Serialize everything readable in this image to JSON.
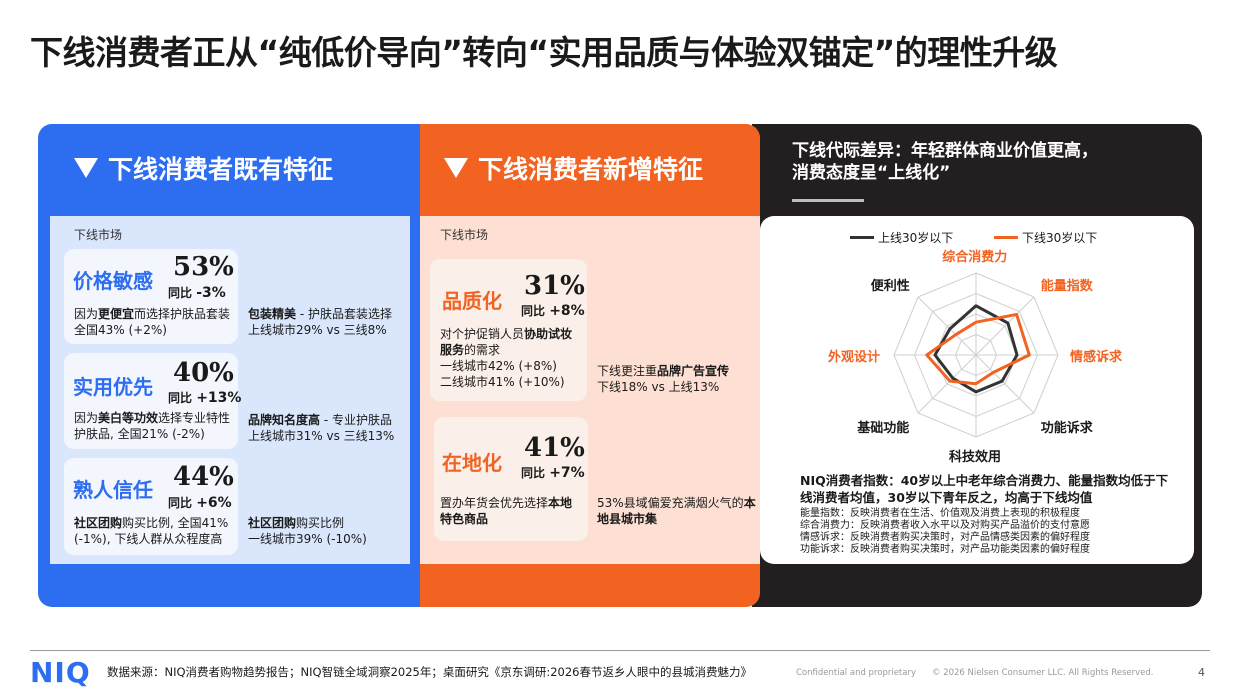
{
  "title": "下线消费者正从“纯低价导向”转向“实用品质与体验双锚定”的理性升级",
  "colors": {
    "blue": "#2d6ef0",
    "orange": "#f26322",
    "dark": "#231f20"
  },
  "left": {
    "header": "下线消费者既有特征",
    "market": "下线市场",
    "cards": [
      {
        "title": "价格敏感",
        "pct": "53%",
        "yoy_label": "同比",
        "yoy": "-3%",
        "desc_pre": "因为",
        "desc_bold": "更便宜",
        "desc_post": "而选择护肤品套装 全国43% (+2%)",
        "side_bold": "包装精美",
        "side_post": " - 护肤品套装选择",
        "side_line2": "上线城市29% vs 三线8%"
      },
      {
        "title": "实用优先",
        "pct": "40%",
        "yoy_label": "同比",
        "yoy": "+13%",
        "desc_pre": "因为",
        "desc_bold": "美白等功效",
        "desc_post": "选择专业特性护肤品, 全国21% (-2%)",
        "side_bold": "品牌知名度高",
        "side_post": " - 专业护肤品",
        "side_line2": "上线城市31% vs 三线13%"
      },
      {
        "title": "熟人信任",
        "pct": "44%",
        "yoy_label": "同比",
        "yoy": "+6%",
        "desc_pre": "",
        "desc_bold": "社区团购",
        "desc_post": "购买比例, 全国41% (-1%), 下线人群从众程度高",
        "side_bold": "社区团购",
        "side_post": "购买比例",
        "side_line2": "一线城市39% (-10%)"
      }
    ]
  },
  "middle": {
    "header": "下线消费者新增特征",
    "market": "下线市场",
    "cards": [
      {
        "title": "品质化",
        "pct": "31%",
        "yoy_label": "同比",
        "yoy": "+8%",
        "desc_pre": "对个护促销人员",
        "desc_bold": "协助试妆服务",
        "desc_post": "的需求",
        "line_a": "一线城市42% (+8%)",
        "line_b": "二线城市41% (+10%)",
        "side_pre": "下线更注重",
        "side_bold": "品牌广告宣传",
        "side_line2": "下线18% vs 上线13%"
      },
      {
        "title": "在地化",
        "pct": "41%",
        "yoy_label": "同比",
        "yoy": "+7%",
        "desc_pre": "置办年货会优先选择",
        "desc_bold": "本地特色商品",
        "desc_post": "",
        "side_pre": "53%县域偏爱充满烟火气的",
        "side_bold": "本地县城市集",
        "side_line2": ""
      }
    ]
  },
  "right": {
    "header_line1": "下线代际差异：年轻群体商业价值更高，",
    "header_line2": "消费态度呈“上线化”",
    "legend": [
      {
        "label": "上线30岁以下",
        "color": "#333333"
      },
      {
        "label": "下线30岁以下",
        "color": "#f26322"
      }
    ],
    "chart_data": {
      "type": "radar",
      "axes": [
        "综合消费力",
        "能量指数",
        "情感诉求",
        "功能诉求",
        "科技效用",
        "基础功能",
        "外观设计",
        "便利性"
      ],
      "series": [
        {
          "name": "上线30岁以下",
          "values": [
            0.6,
            0.55,
            0.5,
            0.45,
            0.45,
            0.4,
            0.5,
            0.45
          ]
        },
        {
          "name": "下线30岁以下",
          "values": [
            0.4,
            0.7,
            0.65,
            0.3,
            0.35,
            0.45,
            0.6,
            0.35
          ]
        }
      ],
      "axis_label_colors": [
        "#f26322",
        "#f26322",
        "#f26322",
        "#1a1a1a",
        "#1a1a1a",
        "#1a1a1a",
        "#f26322",
        "#1a1a1a"
      ]
    },
    "note": "NIQ消费者指数：40岁以上中老年综合消费力、能量指数均低于下线消费者均值，30岁以下青年反之，均高于下线均值",
    "definitions": [
      "能量指数：反映消费者在生活、价值观及消费上表现的积极程度",
      "综合消费力：反映消费者收入水平以及对购买产品溢价的支付意愿",
      "情感诉求：反映消费者购买决策时，对产品情感类因素的偏好程度",
      "功能诉求：反映消费者购买决策时，对产品功能类因素的偏好程度"
    ]
  },
  "footer": {
    "logo": "NIQ",
    "source": "数据来源：NIQ消费者购物趋势报告；NIQ智链全域洞察2025年；桌面研究《京东调研:2026春节返乡人眼中的县城消费魅力》",
    "confidential": "Confidential and proprietary",
    "copyright": "© 2026 Nielsen Consumer LLC. All Rights Reserved.",
    "page": "4"
  }
}
